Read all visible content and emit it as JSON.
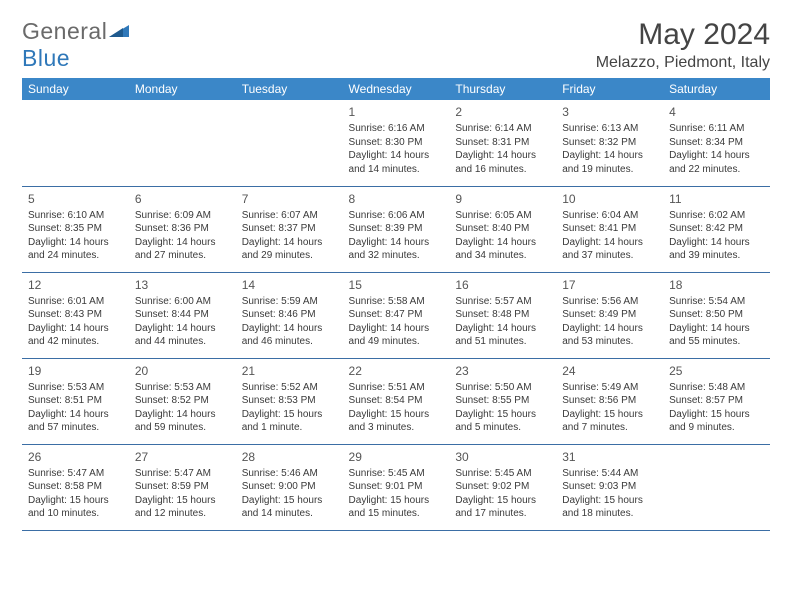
{
  "brand": {
    "text1": "General",
    "text2": "Blue"
  },
  "title": "May 2024",
  "location": "Melazzo, Piedmont, Italy",
  "colors": {
    "header_bg": "#3b87c8",
    "header_text": "#ffffff",
    "cell_border": "#3b6ea5",
    "body_text": "#3a3a3a",
    "logo_gray": "#6a6a6a",
    "logo_blue": "#2f78b9"
  },
  "fonts": {
    "title_size": 30,
    "location_size": 16,
    "dayhead_size": 12,
    "cell_size": 10
  },
  "day_names": [
    "Sunday",
    "Monday",
    "Tuesday",
    "Wednesday",
    "Thursday",
    "Friday",
    "Saturday"
  ],
  "weeks": [
    [
      null,
      null,
      null,
      {
        "n": "1",
        "sr": "6:16 AM",
        "ss": "8:30 PM",
        "dl": "14 hours and 14 minutes."
      },
      {
        "n": "2",
        "sr": "6:14 AM",
        "ss": "8:31 PM",
        "dl": "14 hours and 16 minutes."
      },
      {
        "n": "3",
        "sr": "6:13 AM",
        "ss": "8:32 PM",
        "dl": "14 hours and 19 minutes."
      },
      {
        "n": "4",
        "sr": "6:11 AM",
        "ss": "8:34 PM",
        "dl": "14 hours and 22 minutes."
      }
    ],
    [
      {
        "n": "5",
        "sr": "6:10 AM",
        "ss": "8:35 PM",
        "dl": "14 hours and 24 minutes."
      },
      {
        "n": "6",
        "sr": "6:09 AM",
        "ss": "8:36 PM",
        "dl": "14 hours and 27 minutes."
      },
      {
        "n": "7",
        "sr": "6:07 AM",
        "ss": "8:37 PM",
        "dl": "14 hours and 29 minutes."
      },
      {
        "n": "8",
        "sr": "6:06 AM",
        "ss": "8:39 PM",
        "dl": "14 hours and 32 minutes."
      },
      {
        "n": "9",
        "sr": "6:05 AM",
        "ss": "8:40 PM",
        "dl": "14 hours and 34 minutes."
      },
      {
        "n": "10",
        "sr": "6:04 AM",
        "ss": "8:41 PM",
        "dl": "14 hours and 37 minutes."
      },
      {
        "n": "11",
        "sr": "6:02 AM",
        "ss": "8:42 PM",
        "dl": "14 hours and 39 minutes."
      }
    ],
    [
      {
        "n": "12",
        "sr": "6:01 AM",
        "ss": "8:43 PM",
        "dl": "14 hours and 42 minutes."
      },
      {
        "n": "13",
        "sr": "6:00 AM",
        "ss": "8:44 PM",
        "dl": "14 hours and 44 minutes."
      },
      {
        "n": "14",
        "sr": "5:59 AM",
        "ss": "8:46 PM",
        "dl": "14 hours and 46 minutes."
      },
      {
        "n": "15",
        "sr": "5:58 AM",
        "ss": "8:47 PM",
        "dl": "14 hours and 49 minutes."
      },
      {
        "n": "16",
        "sr": "5:57 AM",
        "ss": "8:48 PM",
        "dl": "14 hours and 51 minutes."
      },
      {
        "n": "17",
        "sr": "5:56 AM",
        "ss": "8:49 PM",
        "dl": "14 hours and 53 minutes."
      },
      {
        "n": "18",
        "sr": "5:54 AM",
        "ss": "8:50 PM",
        "dl": "14 hours and 55 minutes."
      }
    ],
    [
      {
        "n": "19",
        "sr": "5:53 AM",
        "ss": "8:51 PM",
        "dl": "14 hours and 57 minutes."
      },
      {
        "n": "20",
        "sr": "5:53 AM",
        "ss": "8:52 PM",
        "dl": "14 hours and 59 minutes."
      },
      {
        "n": "21",
        "sr": "5:52 AM",
        "ss": "8:53 PM",
        "dl": "15 hours and 1 minute."
      },
      {
        "n": "22",
        "sr": "5:51 AM",
        "ss": "8:54 PM",
        "dl": "15 hours and 3 minutes."
      },
      {
        "n": "23",
        "sr": "5:50 AM",
        "ss": "8:55 PM",
        "dl": "15 hours and 5 minutes."
      },
      {
        "n": "24",
        "sr": "5:49 AM",
        "ss": "8:56 PM",
        "dl": "15 hours and 7 minutes."
      },
      {
        "n": "25",
        "sr": "5:48 AM",
        "ss": "8:57 PM",
        "dl": "15 hours and 9 minutes."
      }
    ],
    [
      {
        "n": "26",
        "sr": "5:47 AM",
        "ss": "8:58 PM",
        "dl": "15 hours and 10 minutes."
      },
      {
        "n": "27",
        "sr": "5:47 AM",
        "ss": "8:59 PM",
        "dl": "15 hours and 12 minutes."
      },
      {
        "n": "28",
        "sr": "5:46 AM",
        "ss": "9:00 PM",
        "dl": "15 hours and 14 minutes."
      },
      {
        "n": "29",
        "sr": "5:45 AM",
        "ss": "9:01 PM",
        "dl": "15 hours and 15 minutes."
      },
      {
        "n": "30",
        "sr": "5:45 AM",
        "ss": "9:02 PM",
        "dl": "15 hours and 17 minutes."
      },
      {
        "n": "31",
        "sr": "5:44 AM",
        "ss": "9:03 PM",
        "dl": "15 hours and 18 minutes."
      },
      null
    ]
  ],
  "labels": {
    "sunrise": "Sunrise:",
    "sunset": "Sunset:",
    "daylight": "Daylight:"
  }
}
